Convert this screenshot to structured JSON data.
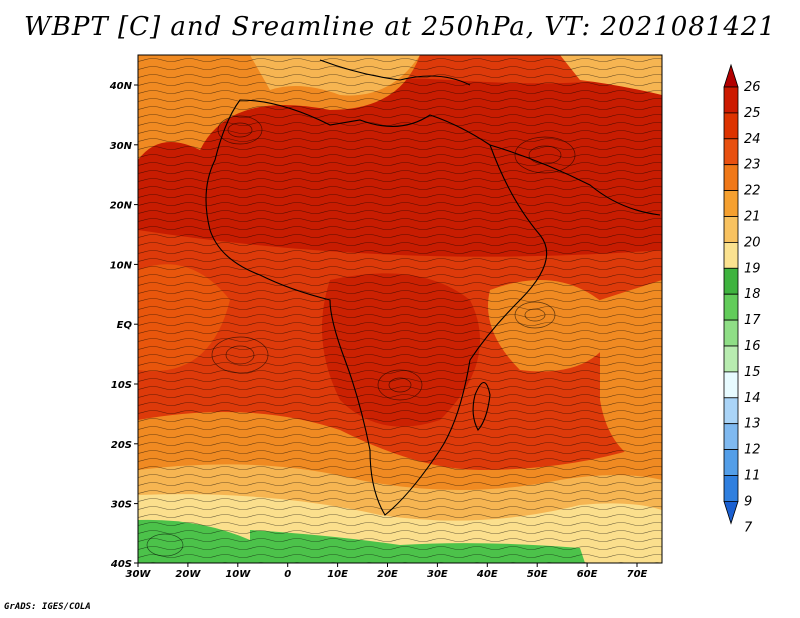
{
  "title": "WBPT [C] and Sreamline at 250hPa, VT: 2021081421",
  "footer": "GrADS: IGES/COLA",
  "map": {
    "lat_ticks": [
      "40N",
      "30N",
      "20N",
      "10N",
      "EQ",
      "10S",
      "20S",
      "30S",
      "40S"
    ],
    "lon_ticks": [
      "30W",
      "20W",
      "10W",
      "0",
      "10E",
      "20E",
      "30E",
      "40E",
      "50E",
      "60E",
      "70E"
    ],
    "extent": {
      "lon": [
        -30,
        75
      ],
      "lat": [
        -40,
        45
      ]
    }
  },
  "colorbar": {
    "labels": [
      "26",
      "25",
      "24",
      "23",
      "22",
      "21",
      "20",
      "19",
      "18",
      "17",
      "16",
      "15",
      "14",
      "13",
      "12",
      "11",
      "9",
      "7"
    ],
    "colors": [
      "#b20000",
      "#cc1a00",
      "#dd3300",
      "#e85010",
      "#f07818",
      "#f5a030",
      "#f8c260",
      "#fbe290",
      "#3fb33f",
      "#62cc5a",
      "#8fde86",
      "#b8ecb0",
      "#e8fbff",
      "#aad4f7",
      "#7fb9f0",
      "#539ee8",
      "#2f7fdf",
      "#1a5fd0"
    ]
  },
  "legend_colors": {
    "deep_red": "#c41a00",
    "red": "#dd3a0a",
    "orange_red": "#e8560c",
    "orange": "#f08a22",
    "light_orange": "#f6b552",
    "yellow": "#fbdf8d",
    "green": "#4cc24a"
  }
}
